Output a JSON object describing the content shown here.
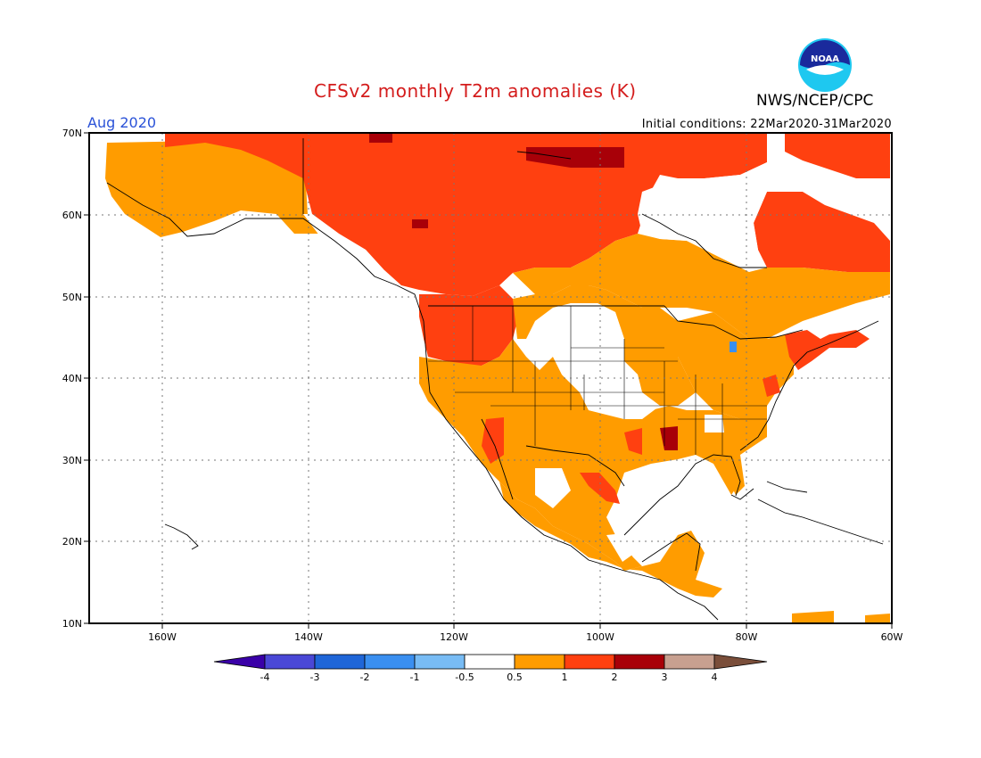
{
  "header": {
    "title": "CFSv2 monthly T2m anomalies (K)",
    "agency": "NWS/NCEP/CPC",
    "logo_text": "NOAA",
    "month": "Aug 2020",
    "initial_conditions": "Initial conditions: 22Mar2020-31Mar2020"
  },
  "axes": {
    "lat_labels": [
      "70N",
      "60N",
      "50N",
      "40N",
      "30N",
      "20N",
      "10N"
    ],
    "lon_labels": [
      "160W",
      "140W",
      "120W",
      "100W",
      "80W",
      "60W"
    ]
  },
  "colorbar": {
    "labels": [
      "-4",
      "-3",
      "-2",
      "-1",
      "-0.5",
      "0.5",
      "1",
      "2",
      "3",
      "4"
    ],
    "colors": [
      "#3a00a8",
      "#4a48d6",
      "#1f66d8",
      "#3a8ff0",
      "#78bcf5",
      "#ffffff",
      "#ff9c00",
      "#ff4010",
      "#a80008",
      "#c8a090",
      "#7a4e3a"
    ]
  },
  "anomaly_colors": {
    "above_0_5": "#ff9c00",
    "above_1": "#ff4010",
    "above_2": "#a80008",
    "below_minus_0_5": "#78bcf5",
    "neutral": "#ffffff"
  },
  "anomaly_summary": {
    "canada_north": "1 to 2 K above normal",
    "arctic_islands_pockets": "2 to 3 K above normal",
    "alaska": "0.5 to 1 K above normal",
    "us_west": "1 to 2 K above normal",
    "us_central_plains": "-0.5 to 0.5 K",
    "us_southeast": "0.5 to 1 K above normal",
    "new_england": "1 to 2 K above normal",
    "mexico_central_america": "0.5 to 1 K above normal",
    "great_lakes_spot": "-0.5 to -1 K"
  }
}
